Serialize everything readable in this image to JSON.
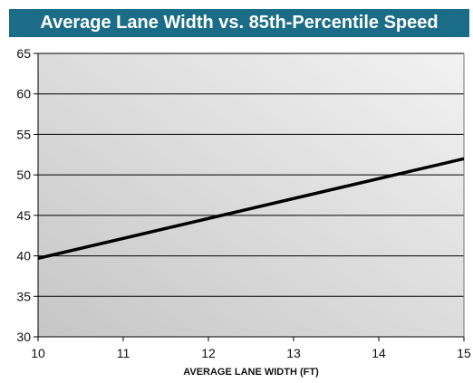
{
  "chart_data": {
    "type": "line",
    "title": "Average Lane Width vs. 85th-Percentile Speed",
    "xlabel": "AVERAGE LANE WIDTH (FT)",
    "ylabel": "",
    "xlim": [
      10,
      15
    ],
    "ylim": [
      30,
      65
    ],
    "xticks": [
      10,
      11,
      12,
      13,
      14,
      15
    ],
    "yticks": [
      30,
      35,
      40,
      45,
      50,
      55,
      60,
      65
    ],
    "grid": "horizontal",
    "legend": "none",
    "series": [
      {
        "x": [
          10,
          15
        ],
        "y": [
          39.7,
          52
        ],
        "color": "#000000"
      }
    ],
    "colors": {
      "title_background": "#1a6c87",
      "title_text": "#ffffff",
      "plot_gradient_dark": "#c6c6c6",
      "plot_gradient_light": "#f2f2f2",
      "grid": "#000000",
      "line": "#000000"
    }
  }
}
